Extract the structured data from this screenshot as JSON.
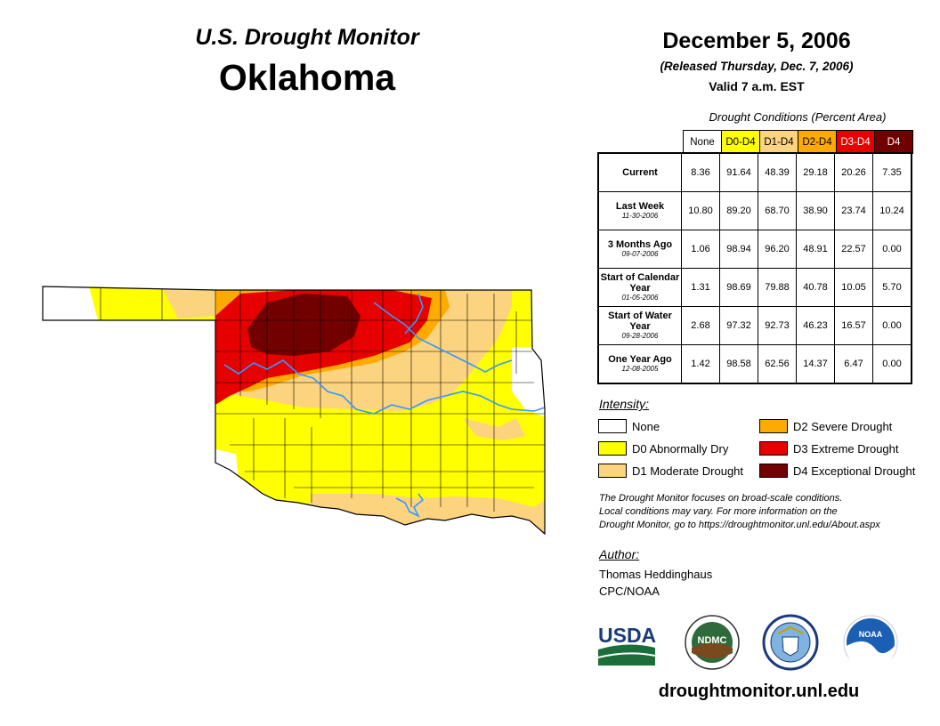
{
  "header": {
    "title": "U.S. Drought Monitor",
    "state": "Oklahoma",
    "date": "December 5, 2006",
    "released": "(Released Thursday, Dec. 7, 2006)",
    "valid": "Valid 7 a.m. EST"
  },
  "conditions": {
    "caption": "Drought Conditions (Percent Area)",
    "columns": [
      "None",
      "D0-D4",
      "D1-D4",
      "D2-D4",
      "D3-D4",
      "D4"
    ],
    "rows": [
      {
        "label": "Current",
        "sub": "",
        "values": [
          "8.36",
          "91.64",
          "48.39",
          "29.18",
          "20.26",
          "7.35"
        ]
      },
      {
        "label": "Last Week",
        "sub": "11-30-2006",
        "values": [
          "10.80",
          "89.20",
          "68.70",
          "38.90",
          "23.74",
          "10.24"
        ]
      },
      {
        "label": "3 Months Ago",
        "sub": "09-07-2006",
        "values": [
          "1.06",
          "98.94",
          "96.20",
          "48.91",
          "22.57",
          "0.00"
        ]
      },
      {
        "label": "Start of Calendar Year",
        "sub": "01-05-2006",
        "values": [
          "1.31",
          "98.69",
          "79.88",
          "40.78",
          "10.05",
          "5.70"
        ]
      },
      {
        "label": "Start of Water Year",
        "sub": "09-28-2006",
        "values": [
          "2.68",
          "97.32",
          "92.73",
          "46.23",
          "16.57",
          "0.00"
        ]
      },
      {
        "label": "One Year Ago",
        "sub": "12-08-2005",
        "values": [
          "1.42",
          "98.58",
          "62.56",
          "14.37",
          "6.47",
          "0.00"
        ]
      }
    ]
  },
  "intensity": {
    "title": "Intensity:",
    "items": [
      {
        "label": "None",
        "color": "#ffffff"
      },
      {
        "label": "D0 Abnormally Dry",
        "color": "#ffff00"
      },
      {
        "label": "D1 Moderate Drought",
        "color": "#fcd37f"
      },
      {
        "label": "D2 Severe Drought",
        "color": "#ffaa00"
      },
      {
        "label": "D3 Extreme Drought",
        "color": "#e60000"
      },
      {
        "label": "D4 Exceptional Drought",
        "color": "#730000"
      }
    ]
  },
  "note": {
    "line1": "The Drought Monitor focuses on broad-scale conditions.",
    "line2": "Local conditions may vary. For more information on the",
    "line3": "Drought Monitor, go to https://droughtmonitor.unl.edu/About.aspx"
  },
  "author": {
    "title": "Author:",
    "name": "Thomas Heddinghaus",
    "org": "CPC/NOAA"
  },
  "logos": {
    "usda": "USDA",
    "ndmc": "NDMC",
    "noaa": "NOAA"
  },
  "footer": {
    "url": "droughtmonitor.unl.edu"
  },
  "colors": {
    "river": "#3399ff",
    "county_line": "#000000",
    "column_header_backgrounds": [
      "#ffffff",
      "#ffff00",
      "#fcd37f",
      "#ffaa00",
      "#e60000",
      "#730000"
    ],
    "column_header_text": [
      "#000000",
      "#000000",
      "#000000",
      "#000000",
      "#ffffff",
      "#ffffff"
    ]
  }
}
